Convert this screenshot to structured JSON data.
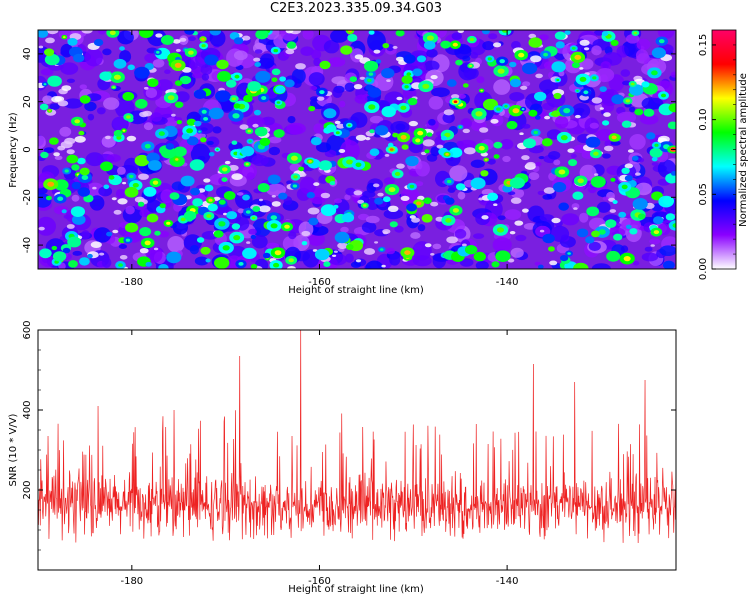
{
  "title": "C2E3.2023.335.09.34.G03",
  "chart_data": [
    {
      "type": "heatmap",
      "xlabel": "Height of straight line (km)",
      "ylabel": "Frequency (Hz)",
      "xlim": [
        -190,
        -122
      ],
      "ylim": [
        -50,
        50
      ],
      "xticks": [
        "-180",
        "-160",
        "-140"
      ],
      "xtick_values": [
        -180,
        -160,
        -140
      ],
      "yticks": [
        "-40",
        "-20",
        "0",
        "20",
        "40"
      ],
      "ytick_values": [
        -40,
        -20,
        0,
        20,
        40
      ],
      "colorbar": {
        "label": "Normalized spectral amplitude",
        "range": [
          0,
          0.16
        ],
        "ticks": [
          "0.00",
          "0.05",
          "0.10",
          "0.15"
        ],
        "tick_values": [
          0.0,
          0.05,
          0.1,
          0.15
        ],
        "colormap": [
          "#ffffff",
          "#8a00ff",
          "#0000ff",
          "#00ffff",
          "#00ff00",
          "#ffff00",
          "#ff0000",
          "#ff0066"
        ]
      },
      "peaks": [
        {
          "x": -122.3,
          "y": 0,
          "value": 0.16
        },
        {
          "x": -145.5,
          "y": 20,
          "value": 0.14
        },
        {
          "x": -152.3,
          "y": 0,
          "value": 0.13
        },
        {
          "x": -146.4,
          "y": -2,
          "value": 0.12
        },
        {
          "x": -161,
          "y": -5,
          "value": 0.12
        }
      ],
      "grid": false
    },
    {
      "type": "line",
      "xlabel": "Height of straight line (km)",
      "ylabel": "SNR (10 * V/V)",
      "xlim": [
        -190,
        -122
      ],
      "ylim": [
        0,
        600
      ],
      "xticks": [
        "-180",
        "-160",
        "-140"
      ],
      "xtick_values": [
        -180,
        -160,
        -140
      ],
      "yticks": [
        "200",
        "400",
        "600"
      ],
      "ytick_values": [
        200,
        400,
        600
      ],
      "series": [
        {
          "color": "#ee2222",
          "mean": 160,
          "notable_spikes": [
            {
              "x": -162,
              "y": 600
            },
            {
              "x": -168.5,
              "y": 535
            },
            {
              "x": -125.3,
              "y": 475
            },
            {
              "x": -132.8,
              "y": 470
            },
            {
              "x": -137.2,
              "y": 515
            },
            {
              "x": -175.5,
              "y": 400
            },
            {
              "x": -183.6,
              "y": 410
            }
          ]
        }
      ],
      "grid": false
    }
  ]
}
